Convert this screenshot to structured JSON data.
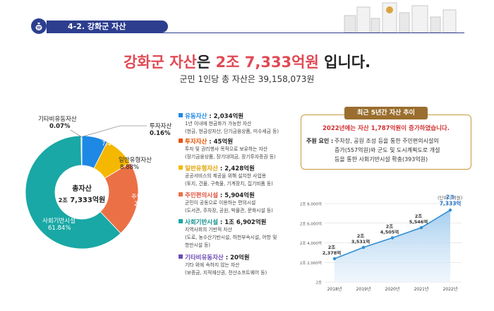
{
  "header": {
    "title": "4-2. 강화군 자산"
  },
  "headline": {
    "part1": "강화군 자산",
    "part2": "은 ",
    "part3": "2조 7,333억원",
    "part4": " 입니다."
  },
  "subline": "군민 1인당 총 자산은 39,158,073원",
  "donut": {
    "center_title": "총자산",
    "center_value_small": "2조",
    "center_value": "7,333억원",
    "labels": [
      {
        "name": "유동자산",
        "pct": "7.44%"
      },
      {
        "name": "일반유형자산",
        "pct": "8.88%"
      },
      {
        "name": "주민편의시설",
        "pct": "21.60%"
      },
      {
        "name": "사회기반시설",
        "pct": "61.84%"
      },
      {
        "name": "기타비유동자산",
        "pct": "0.07%"
      },
      {
        "name": "투자자산",
        "pct": "0.16%"
      }
    ]
  },
  "legend": [
    {
      "name": "유동자산",
      "value": " : 2,034억원",
      "color": "#1e88e5",
      "desc": [
        "1년 이내에 현금화가 가능한 자산",
        "(현금, 현금성자산, 단기금융상품, 미수세금 등)"
      ]
    },
    {
      "name": "투자자산",
      "value": " : 45억원",
      "color": "#e65100",
      "desc": [
        "투자 및 권리행사 목적으로 보유하는 자산",
        "(장기금융상품, 장기대여금, 장기투자증권 등)"
      ]
    },
    {
      "name": "일반유형자산",
      "value": " : 2,428억원",
      "color": "#f5b800",
      "desc": [
        "공공서비스의 제공을 위해 설치한 사업용",
        "(토지, 건물, 구축물, 기계장치, 집기비품 등)"
      ]
    },
    {
      "name": "주민편의시설",
      "value": " : 5,904억원",
      "color": "#ec7046",
      "desc": [
        "군민이 공동으로 이용하는 편의시설",
        "(도서관, 주차장, 공원, 박물관, 문화시설 등)"
      ]
    },
    {
      "name": "사회기반시설",
      "value": " : 1조 6,902억원",
      "color": "#19a8a5",
      "desc": [
        "지역사회의 기반적 자산",
        "(도로, 농수산기반시설, 하천부속시설, 어항 및",
        "항만시설 등)"
      ]
    },
    {
      "name": "기타비유동자산",
      "value": " : 20억원",
      "color": "#6a4bb5",
      "desc": [
        "기타 위에 속하지 않는 자산",
        "(보증금, 지적재산권, 전산소프트웨어 등)"
      ]
    }
  ],
  "trend": {
    "tab": "최근 5년간 자산 추이",
    "lead": "2022년에는 자산 1,787억원이 증가하였습니다.",
    "reason_key": "주원 요인 :",
    "reason_lines": [
      "주차장, 공원 조성 등을 통한 주민편의시설의",
      "증가(557억원)와 군도 및 도시계획도로 개설",
      "등을 통한 사회기반시설 확충(393억원)"
    ]
  },
  "unit": "(단위 : 억원)",
  "colors": {
    "유동자산": "#1e88e5",
    "일반유형자산": "#f5b800",
    "주민편의시설": "#ec7046",
    "사회기반시설": "#19a8a5",
    "기타비유동자산": "#6a4bb5",
    "투자자산": "#e65100",
    "line": "#2f8fd6"
  },
  "chart_data": [
    {
      "type": "pie",
      "title": "총자산 2조 7,333억원",
      "categories": [
        "유동자산",
        "일반유형자산",
        "주민편의시설",
        "사회기반시설",
        "기타비유동자산",
        "투자자산"
      ],
      "values": [
        7.44,
        8.88,
        21.6,
        61.84,
        0.07,
        0.16
      ],
      "unit": "%"
    },
    {
      "type": "area",
      "categories": [
        "2018년",
        "2019년",
        "2020년",
        "2021년",
        "2022년"
      ],
      "values": [
        22378,
        23531,
        24505,
        25546,
        27333
      ],
      "data_labels": [
        [
          "2조",
          "2,378억"
        ],
        [
          "2조",
          "3,531억"
        ],
        [
          "2조",
          "4,505억"
        ],
        [
          "2조",
          "5,546억"
        ],
        [
          "2조",
          "7,333억"
        ]
      ],
      "yticks": [
        "2조",
        "2조 2,000억",
        "2조 4,000억",
        "2조 6,000억",
        "2조 8,000억"
      ],
      "ytick_values": [
        20000,
        22000,
        24000,
        26000,
        28000
      ],
      "ylim": [
        20000,
        28000
      ],
      "grid": true
    }
  ]
}
